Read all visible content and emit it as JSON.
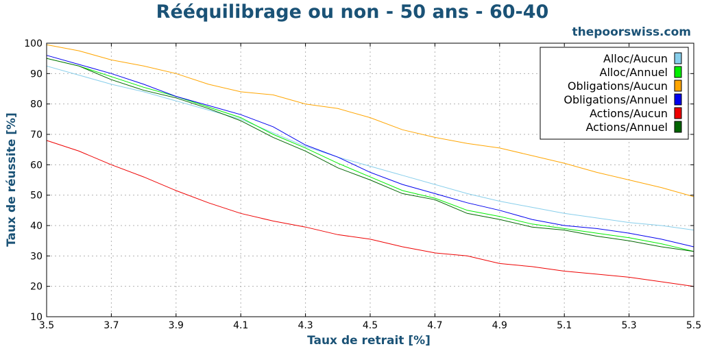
{
  "chart_data": {
    "type": "line",
    "title": "Rééquilibrage ou non - 50 ans - 60-40",
    "source": "thepoorswiss.com",
    "xlabel": "Taux de retrait [%]",
    "ylabel": "Taux de réussite [%]",
    "xlim": [
      3.5,
      5.5
    ],
    "ylim": [
      10,
      100
    ],
    "xticks": [
      "3.5",
      "3.7",
      "3.9",
      "4.1",
      "4.3",
      "4.5",
      "4.7",
      "4.9",
      "5.1",
      "5.3",
      "5.5"
    ],
    "yticks": [
      "10",
      "20",
      "30",
      "40",
      "50",
      "60",
      "70",
      "80",
      "90",
      "100"
    ],
    "grid": true,
    "legend_position": "top-right",
    "x": [
      3.5,
      3.6,
      3.7,
      3.8,
      3.9,
      4.0,
      4.1,
      4.2,
      4.3,
      4.4,
      4.5,
      4.6,
      4.7,
      4.8,
      4.9,
      5.0,
      5.1,
      5.2,
      5.3,
      5.4,
      5.5
    ],
    "series": [
      {
        "name": "Alloc/Aucun",
        "color": "#87ceeb",
        "values": [
          92.5,
          89.5,
          86.5,
          84,
          81,
          78,
          75,
          70.5,
          66,
          62.5,
          59.5,
          56.5,
          53.5,
          50.5,
          48,
          46,
          44,
          42.5,
          41,
          40,
          38.5
        ]
      },
      {
        "name": "Alloc/Annuel",
        "color": "#00ee00",
        "values": [
          95,
          92.5,
          89,
          85.5,
          82.5,
          79,
          75.5,
          70,
          65.5,
          60.5,
          56,
          51.5,
          49,
          45,
          43,
          40.5,
          39,
          37.5,
          36,
          34,
          31.5
        ]
      },
      {
        "name": "Obligations/Aucun",
        "color": "#ffa500",
        "values": [
          99.5,
          97.5,
          94.5,
          92.5,
          90,
          86.5,
          84,
          83,
          80,
          78.5,
          75.5,
          71.5,
          69,
          67,
          65.5,
          63,
          60.5,
          57.5,
          55,
          52.5,
          49.5
        ]
      },
      {
        "name": "Obligations/Annuel",
        "color": "#0000ee",
        "values": [
          96,
          93,
          90,
          86.5,
          82.5,
          79.5,
          76.5,
          72.5,
          66.5,
          62.5,
          57.5,
          53.5,
          50.5,
          47.5,
          45,
          42,
          40,
          39,
          37.5,
          35.5,
          33
        ]
      },
      {
        "name": "Actions/Aucun",
        "color": "#ee0000",
        "values": [
          68,
          64.5,
          60,
          56,
          51.5,
          47.5,
          44,
          41.5,
          39.5,
          37,
          35.5,
          33,
          31,
          30,
          27.5,
          26.5,
          25,
          24,
          23,
          21.5,
          20
        ]
      },
      {
        "name": "Actions/Annuel",
        "color": "#006400",
        "values": [
          95,
          92.5,
          88,
          84.5,
          82,
          78.5,
          74.5,
          69,
          64.5,
          59,
          55,
          50.5,
          48.5,
          44,
          42,
          39.5,
          38.5,
          36.5,
          35,
          33,
          31.5
        ]
      }
    ]
  }
}
